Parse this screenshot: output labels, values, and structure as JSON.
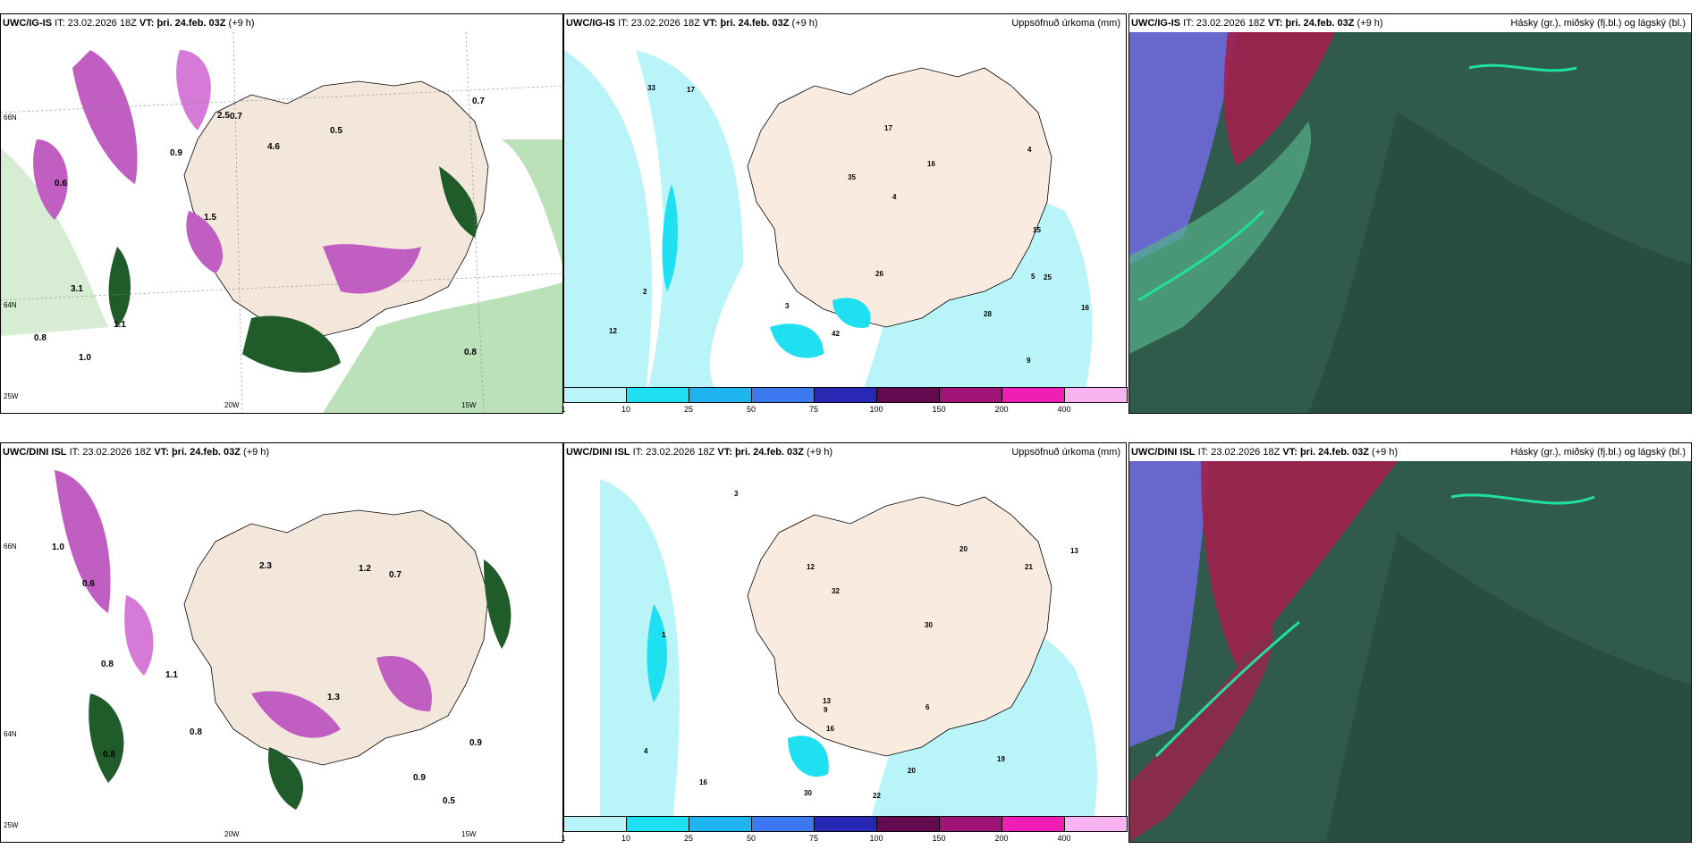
{
  "rows": [
    {
      "model": "UWC/IG-IS",
      "it_label": "IT:",
      "it_value": "23.02.2026 18Z",
      "vt_label": "VT:",
      "vt_value": "þri. 24.feb. 03Z",
      "lead": "(+9 h)"
    },
    {
      "model": "UWC/DINI ISL",
      "it_label": "IT:",
      "it_value": "23.02.2026 18Z",
      "vt_label": "VT:",
      "vt_value": "þri. 24.feb. 03Z",
      "lead": "(+9 h)"
    }
  ],
  "precip_title": "Uppsöfnuð úrkoma (mm)",
  "cloud_title": "Hásky (gr.), miðský (fj.bl.) og lágský (bl.)",
  "axis_labels": {
    "lat_66": "66N",
    "lat_64": "64N",
    "lon_25": "25W",
    "lon_20": "20W",
    "lon_15": "15W"
  },
  "colorbar": {
    "ticks": [
      "1",
      "10",
      "25",
      "50",
      "75",
      "100",
      "150",
      "200",
      "400"
    ],
    "colors": [
      "#b8f4f8",
      "#1ee0f0",
      "#1eb4f0",
      "#3c78f0",
      "#2828b4",
      "#640a50",
      "#a01478",
      "#f01eb4",
      "#f8b4f0"
    ]
  },
  "precip_labels_top": [
    "2",
    "4",
    "5",
    "16",
    "17",
    "28",
    "35",
    "16",
    "25",
    "12",
    "17",
    "26",
    "15",
    "42",
    "33",
    "3",
    "9",
    "4"
  ],
  "precip_labels_bottom": [
    "1",
    "3",
    "32",
    "20",
    "16",
    "13",
    "12",
    "21",
    "30",
    "22",
    "19",
    "16",
    "13",
    "20",
    "30",
    "9",
    "6",
    "4"
  ],
  "snow_labels_top": [
    "0.8",
    "0.6",
    "0.7",
    "1.5",
    "0.5",
    "1.0",
    "2.5",
    "4.6",
    "3.1",
    "0.9",
    "0.8",
    "1.1",
    "0.7"
  ],
  "snow_labels_bottom": [
    "0.5",
    "0.8",
    "1.3",
    "1.0",
    "0.9",
    "0.6",
    "0.8",
    "1.1",
    "0.7",
    "2.3",
    "1.2",
    "0.9",
    "0.8"
  ]
}
